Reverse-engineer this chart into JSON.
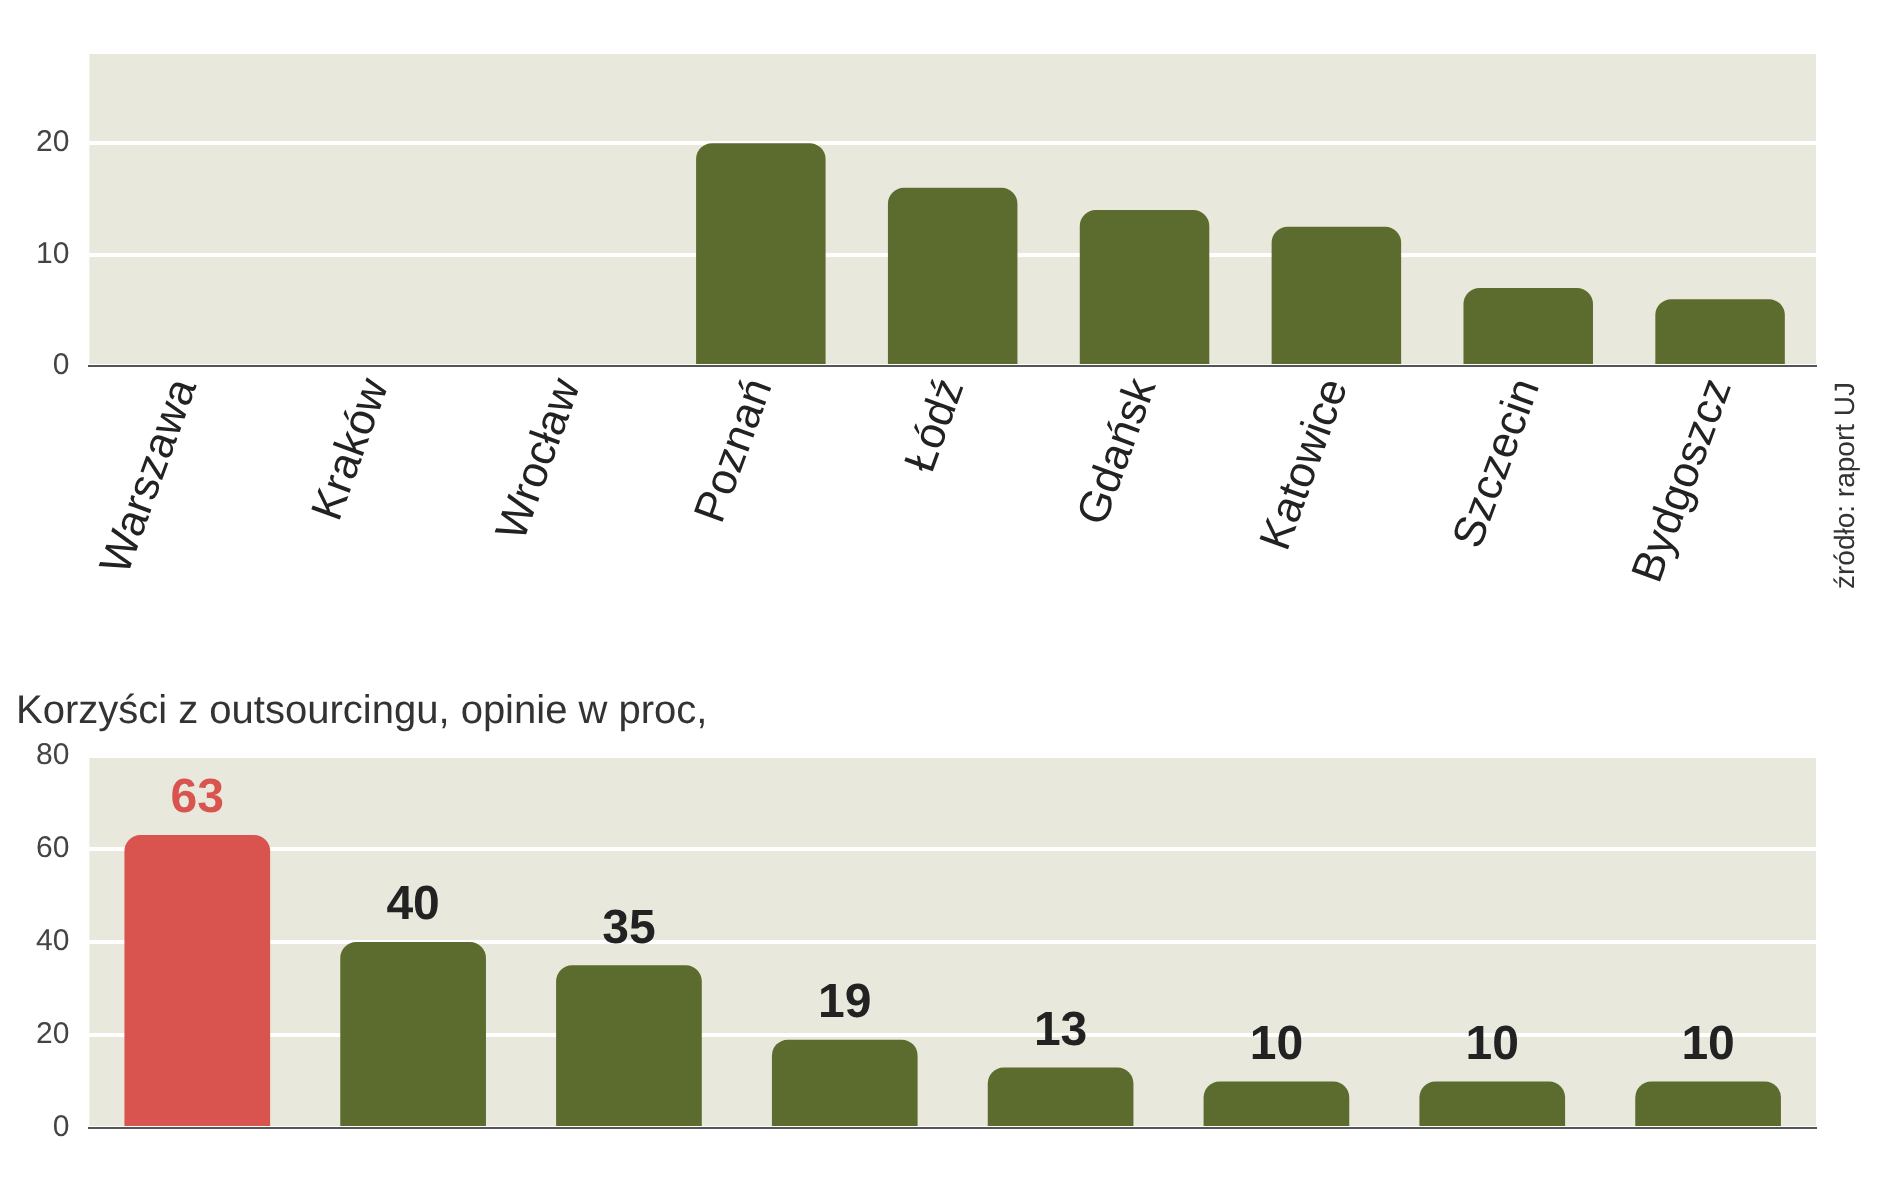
{
  "chart_data": [
    {
      "type": "bar",
      "categories": [
        "Warszawa",
        "Kraków",
        "Wrocław",
        "Poznań",
        "Łódź",
        "Gdańsk",
        "Katowice",
        "Szczecin",
        "Bydgoszcz"
      ],
      "values": [
        null,
        null,
        null,
        20,
        16,
        14,
        12.5,
        7,
        6
      ],
      "colors": [
        "#d9534f",
        "#5c6b2e",
        "#5c6b2e",
        "#5c6b2e",
        "#5c6b2e",
        "#5c6b2e",
        "#5c6b2e",
        "#5c6b2e",
        "#5c6b2e"
      ],
      "ylim": [
        0,
        28
      ],
      "yticks": [
        0,
        10,
        20
      ],
      "grid": "y",
      "annotations": [
        "źródło: raport UJ"
      ]
    },
    {
      "type": "bar",
      "title": "Korzyści z outsourcingu, opinie w proc,",
      "categories": [
        null,
        null,
        null,
        null,
        null,
        null,
        null,
        null
      ],
      "values": [
        63,
        40,
        35,
        19,
        13,
        10,
        10,
        10
      ],
      "colors": [
        "#d9534f",
        "#5c6b2e",
        "#5c6b2e",
        "#5c6b2e",
        "#5c6b2e",
        "#5c6b2e",
        "#5c6b2e",
        "#5c6b2e"
      ],
      "ylim": [
        0,
        80
      ],
      "yticks": [
        0,
        20,
        40,
        60,
        80
      ],
      "grid": "y",
      "data_labels": true
    }
  ]
}
